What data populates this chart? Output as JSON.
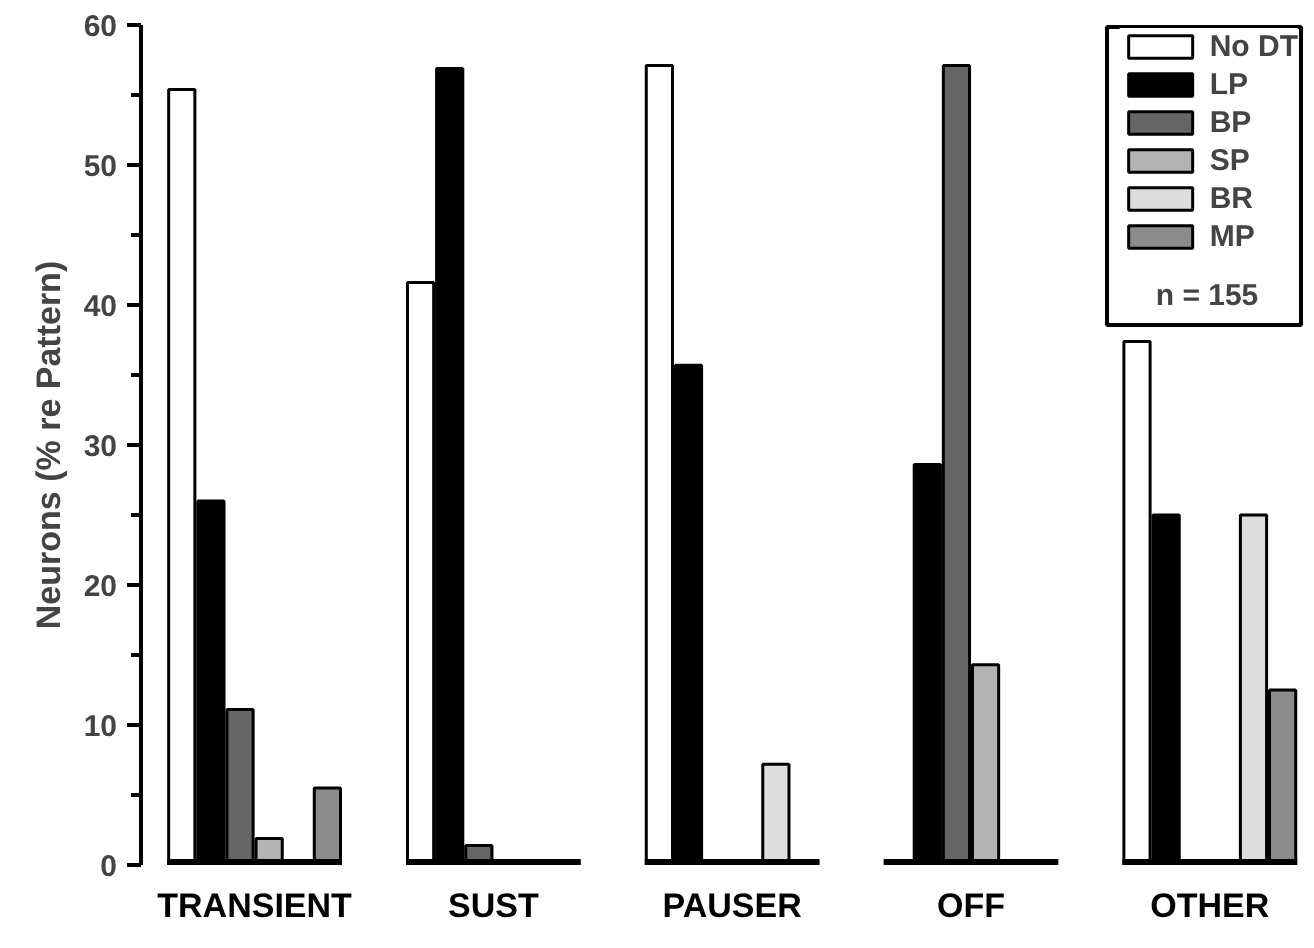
{
  "chart_data": {
    "type": "bar",
    "ylabel": "Neurons (% re Pattern)",
    "categories": [
      "TRANSIENT",
      "SUST",
      "PAUSER",
      "OFF",
      "OTHER"
    ],
    "series": [
      {
        "name": "No DT",
        "color": "#ffffff",
        "values": [
          55.4,
          41.6,
          57.1,
          0,
          37.4
        ]
      },
      {
        "name": "LP",
        "color": "#000000",
        "values": [
          26.0,
          56.9,
          35.7,
          28.6,
          25.0
        ]
      },
      {
        "name": "BP",
        "color": "#666666",
        "values": [
          11.1,
          1.4,
          0,
          57.1,
          0
        ]
      },
      {
        "name": "SP",
        "color": "#b3b3b3",
        "values": [
          1.9,
          0,
          0,
          14.3,
          0
        ]
      },
      {
        "name": "BR",
        "color": "#dddddd",
        "values": [
          0,
          0,
          7.2,
          0,
          25.0
        ]
      },
      {
        "name": "MP",
        "color": "#8c8c8c",
        "values": [
          5.5,
          0,
          0,
          0,
          12.5
        ]
      }
    ],
    "annotations": [
      "n = 155"
    ],
    "ylim": [
      0,
      60
    ],
    "yticks": [
      0,
      10,
      20,
      30,
      40,
      50,
      60
    ],
    "grid": false,
    "legend": "top right"
  }
}
